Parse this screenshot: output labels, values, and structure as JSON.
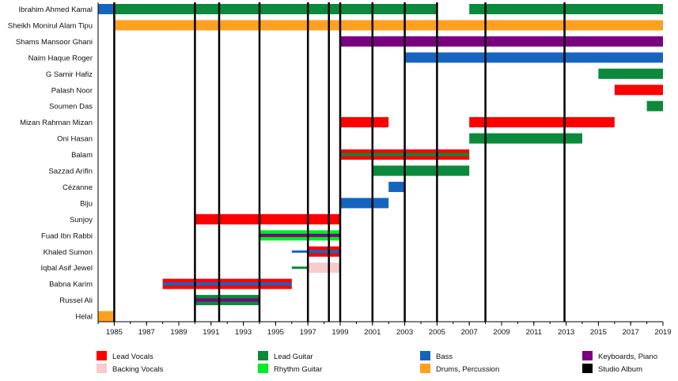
{
  "chart_data": {
    "type": "timeline",
    "title": "",
    "xlabel": "",
    "ylabel": "",
    "xlim": [
      1984,
      2019
    ],
    "x_ticks": [
      1985,
      1987,
      1989,
      1991,
      1993,
      1995,
      1997,
      1999,
      2001,
      2003,
      2005,
      2007,
      2009,
      2011,
      2013,
      2015,
      2017,
      2019
    ],
    "x_tick_labels": [
      "1985",
      "1987",
      "1989",
      "1991",
      "1993",
      "1995",
      "1997",
      "1999",
      "2001",
      "2003",
      "2005",
      "2007",
      "2009",
      "2011",
      "2013",
      "2015",
      "2017",
      "2019"
    ],
    "roles": [
      {
        "key": "lead_vocals",
        "label": "Lead Vocals",
        "color": "#ff0000"
      },
      {
        "key": "backing_vocals",
        "label": "Backing Vocals",
        "color": "#f6cccc"
      },
      {
        "key": "lead_guitar",
        "label": "Lead Guitar",
        "color": "#0a8a3a"
      },
      {
        "key": "rhythm_guitar",
        "label": "Rhythm Guitar",
        "color": "#00ee22"
      },
      {
        "key": "bass",
        "label": "Bass",
        "color": "#1565c0"
      },
      {
        "key": "drums",
        "label": "Drums, Percussion",
        "color": "#ffa020"
      },
      {
        "key": "keyboards",
        "label": "Keyboards, Piano",
        "color": "#7a0080"
      },
      {
        "key": "studio_album",
        "label": "Studio Album",
        "color": "#000000"
      }
    ],
    "studio_albums": [
      1985,
      1990,
      1991.5,
      1994,
      1997,
      1998.3,
      1999,
      2001,
      2003,
      2005,
      2008,
      2012.9
    ],
    "members": [
      {
        "name": "Ibrahim Ahmed Kamal",
        "bars": [
          {
            "role": "bass",
            "start": 1984,
            "end": 1985,
            "layer": "full"
          },
          {
            "role": "lead_guitar",
            "start": 1985,
            "end": 2005,
            "layer": "full"
          },
          {
            "role": "lead_guitar",
            "start": 2007,
            "end": 2019,
            "layer": "full"
          }
        ]
      },
      {
        "name": "Sheikh Monirul Alam Tipu",
        "bars": [
          {
            "role": "drums",
            "start": 1985,
            "end": 2019,
            "layer": "full"
          }
        ]
      },
      {
        "name": "Shams Mansoor Ghani",
        "bars": [
          {
            "role": "keyboards",
            "start": 1999,
            "end": 2019,
            "layer": "full"
          }
        ]
      },
      {
        "name": "Naim Haque Roger",
        "bars": [
          {
            "role": "bass",
            "start": 2003,
            "end": 2019,
            "layer": "full"
          }
        ]
      },
      {
        "name": "G Samir Hafiz",
        "bars": [
          {
            "role": "lead_guitar",
            "start": 2015,
            "end": 2019,
            "layer": "full"
          }
        ]
      },
      {
        "name": "Palash Noor",
        "bars": [
          {
            "role": "lead_vocals",
            "start": 2016,
            "end": 2019,
            "layer": "full"
          }
        ]
      },
      {
        "name": "Soumen Das",
        "bars": [
          {
            "role": "lead_guitar",
            "start": 2018,
            "end": 2019,
            "layer": "full"
          }
        ]
      },
      {
        "name": "Mizan Rahman Mizan",
        "bars": [
          {
            "role": "lead_vocals",
            "start": 1999,
            "end": 2002,
            "layer": "full"
          },
          {
            "role": "lead_vocals",
            "start": 2007,
            "end": 2016,
            "layer": "full"
          }
        ]
      },
      {
        "name": "Oni Hasan",
        "bars": [
          {
            "role": "lead_guitar",
            "start": 2007,
            "end": 2014,
            "layer": "full"
          }
        ]
      },
      {
        "name": "Balam",
        "bars": [
          {
            "role": "lead_vocals",
            "start": 1999,
            "end": 2007,
            "layer": "full"
          },
          {
            "role": "lead_guitar",
            "start": 1999,
            "end": 2007,
            "layer": "stripe"
          }
        ]
      },
      {
        "name": "Sazzad Arifin",
        "bars": [
          {
            "role": "lead_guitar",
            "start": 2001,
            "end": 2007,
            "layer": "full"
          }
        ]
      },
      {
        "name": "Cézanne",
        "bars": [
          {
            "role": "bass",
            "start": 2002,
            "end": 2003,
            "layer": "full"
          }
        ]
      },
      {
        "name": "Biju",
        "bars": [
          {
            "role": "bass",
            "start": 1999,
            "end": 2002,
            "layer": "full"
          }
        ]
      },
      {
        "name": "Sunjoy",
        "bars": [
          {
            "role": "lead_vocals",
            "start": 1990,
            "end": 1999,
            "layer": "full"
          }
        ]
      },
      {
        "name": "Fuad Ibn Rabbi",
        "bars": [
          {
            "role": "rhythm_guitar",
            "start": 1994,
            "end": 1999,
            "layer": "full"
          },
          {
            "role": "keyboards",
            "start": 1994,
            "end": 1999,
            "layer": "stripe"
          }
        ]
      },
      {
        "name": "Khaled Sumon",
        "bars": [
          {
            "role": "bass",
            "start": 1996,
            "end": 1999,
            "layer": "thin"
          },
          {
            "role": "lead_vocals",
            "start": 1997,
            "end": 1999,
            "layer": "full"
          },
          {
            "role": "bass",
            "start": 1997,
            "end": 1999,
            "layer": "stripe"
          }
        ]
      },
      {
        "name": "Iqbal Asif Jewel",
        "bars": [
          {
            "role": "lead_guitar",
            "start": 1996,
            "end": 1999,
            "layer": "thin"
          },
          {
            "role": "backing_vocals",
            "start": 1997,
            "end": 1999,
            "layer": "full"
          }
        ]
      },
      {
        "name": "Babna Karim",
        "bars": [
          {
            "role": "lead_vocals",
            "start": 1988,
            "end": 1996,
            "layer": "full"
          },
          {
            "role": "bass",
            "start": 1988,
            "end": 1996,
            "layer": "stripe"
          }
        ]
      },
      {
        "name": "Russel Ali",
        "bars": [
          {
            "role": "lead_guitar",
            "start": 1990,
            "end": 1994,
            "layer": "full"
          },
          {
            "role": "keyboards",
            "start": 1990,
            "end": 1994,
            "layer": "stripe"
          }
        ]
      },
      {
        "name": "Helal",
        "bars": [
          {
            "role": "drums",
            "start": 1984,
            "end": 1985,
            "layer": "full"
          }
        ]
      }
    ]
  }
}
